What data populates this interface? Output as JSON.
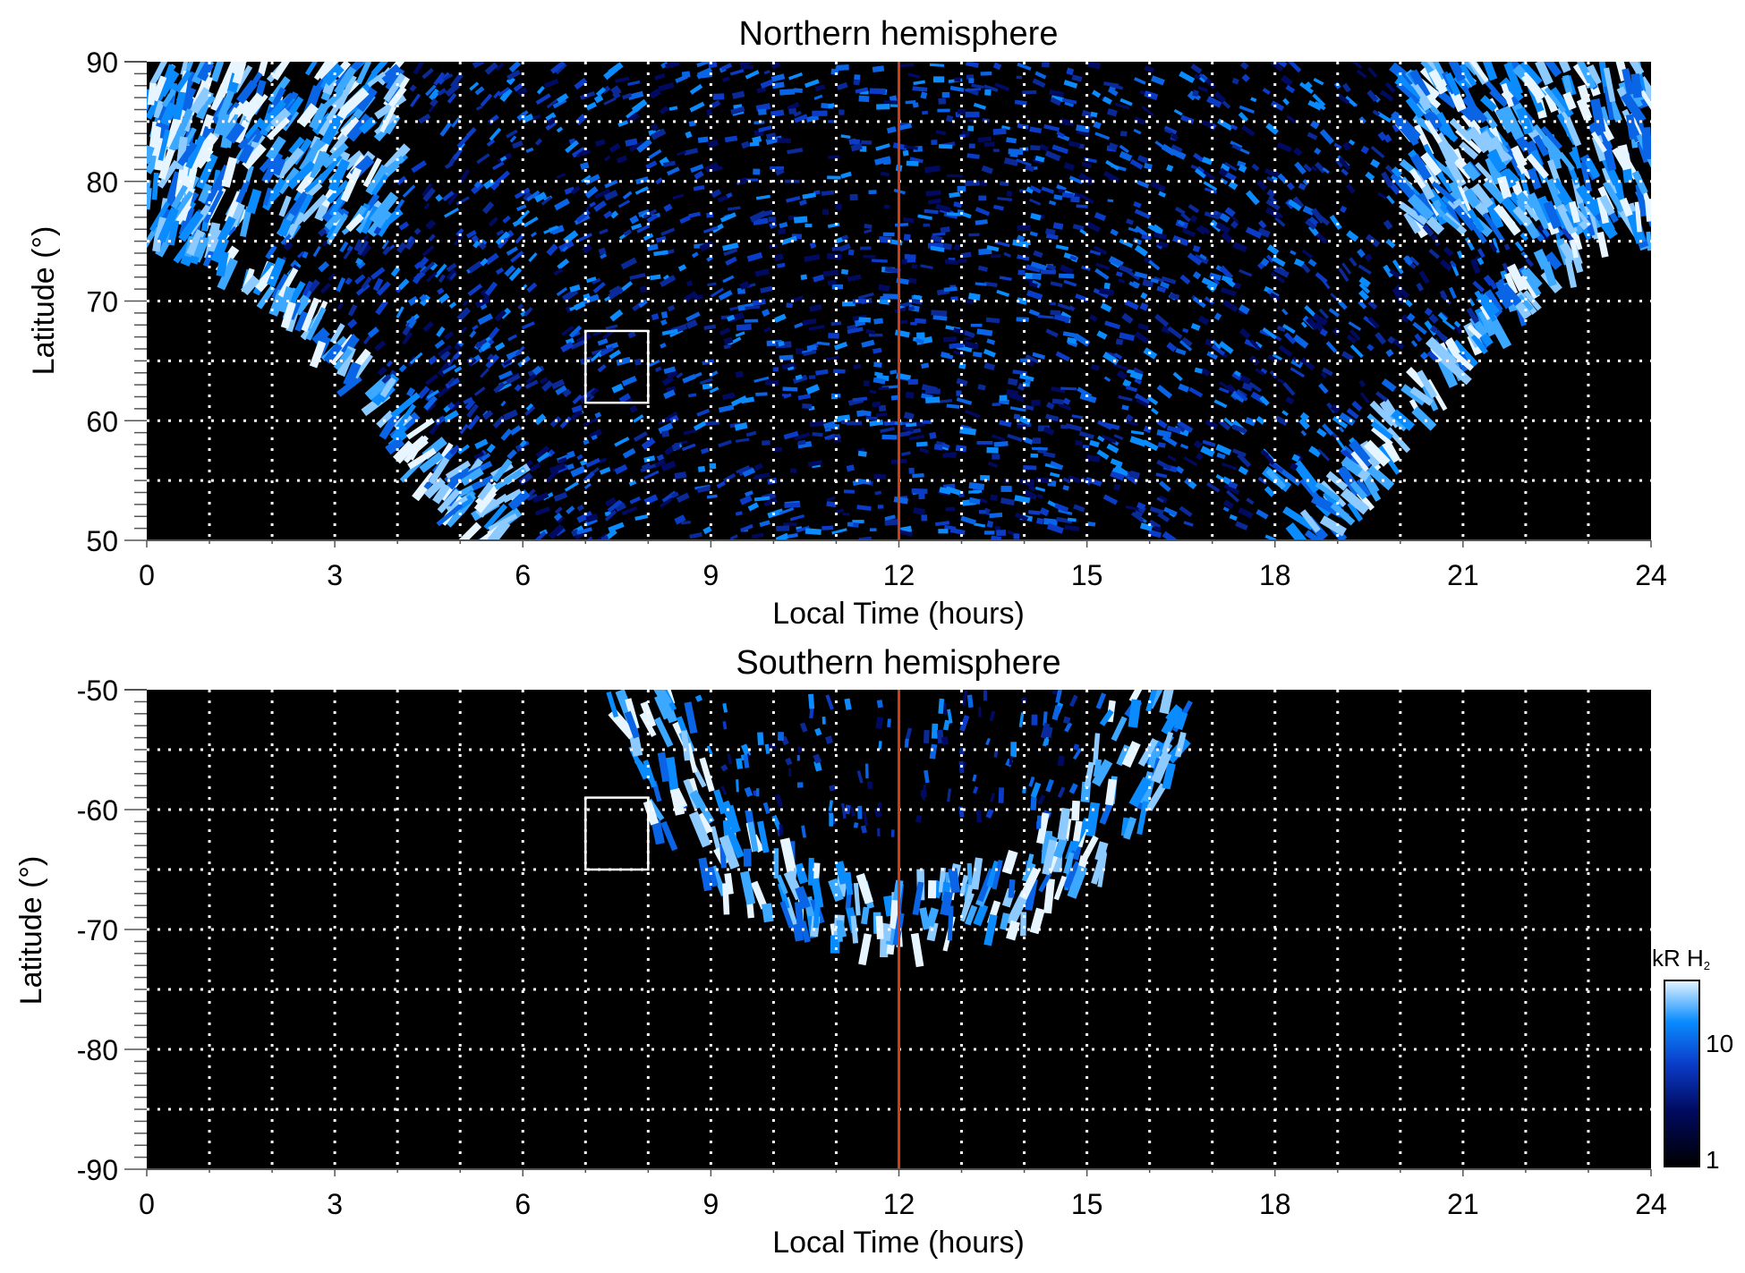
{
  "chart_data": [
    {
      "type": "heatmap",
      "title": "Northern hemisphere",
      "xlabel": "Local Time (hours)",
      "ylabel": "Latitude (°)",
      "xlim": [
        0,
        24
      ],
      "ylim": [
        50,
        90
      ],
      "xticks": [
        "0",
        "3",
        "6",
        "9",
        "12",
        "15",
        "18",
        "21",
        "24"
      ],
      "yticks": [
        "50",
        "60",
        "70",
        "80",
        "90"
      ],
      "grid": "dotted, every 1 hour and 5 degrees",
      "reference_line": {
        "x": 12,
        "color": "#d23c14"
      },
      "highlight_box": {
        "x": [
          7,
          8
        ],
        "y": [
          61.5,
          67.5
        ]
      }
    },
    {
      "type": "heatmap",
      "title": "Southern hemisphere",
      "xlabel": "Local Time (hours)",
      "ylabel": "Latitude (°)",
      "xlim": [
        0,
        24
      ],
      "ylim": [
        -90,
        -50
      ],
      "xticks": [
        "0",
        "3",
        "6",
        "9",
        "12",
        "15",
        "18",
        "21",
        "24"
      ],
      "yticks": [
        "-90",
        "-80",
        "-70",
        "-60",
        "-50"
      ],
      "grid": "dotted, every 1 hour and 5 degrees",
      "reference_line": {
        "x": 12,
        "color": "#d23c14"
      },
      "highlight_box": {
        "x": [
          7,
          8
        ],
        "y": [
          -65,
          -59
        ]
      }
    }
  ],
  "colorbar": {
    "label_main": "kR H",
    "label_sub": "2",
    "scale": "log",
    "range": [
      1,
      30
    ],
    "ticks": [
      "1",
      "10"
    ],
    "colors": [
      "#000000",
      "#000a60",
      "#0a3cc8",
      "#0a8cff",
      "#e6f5ff"
    ]
  }
}
